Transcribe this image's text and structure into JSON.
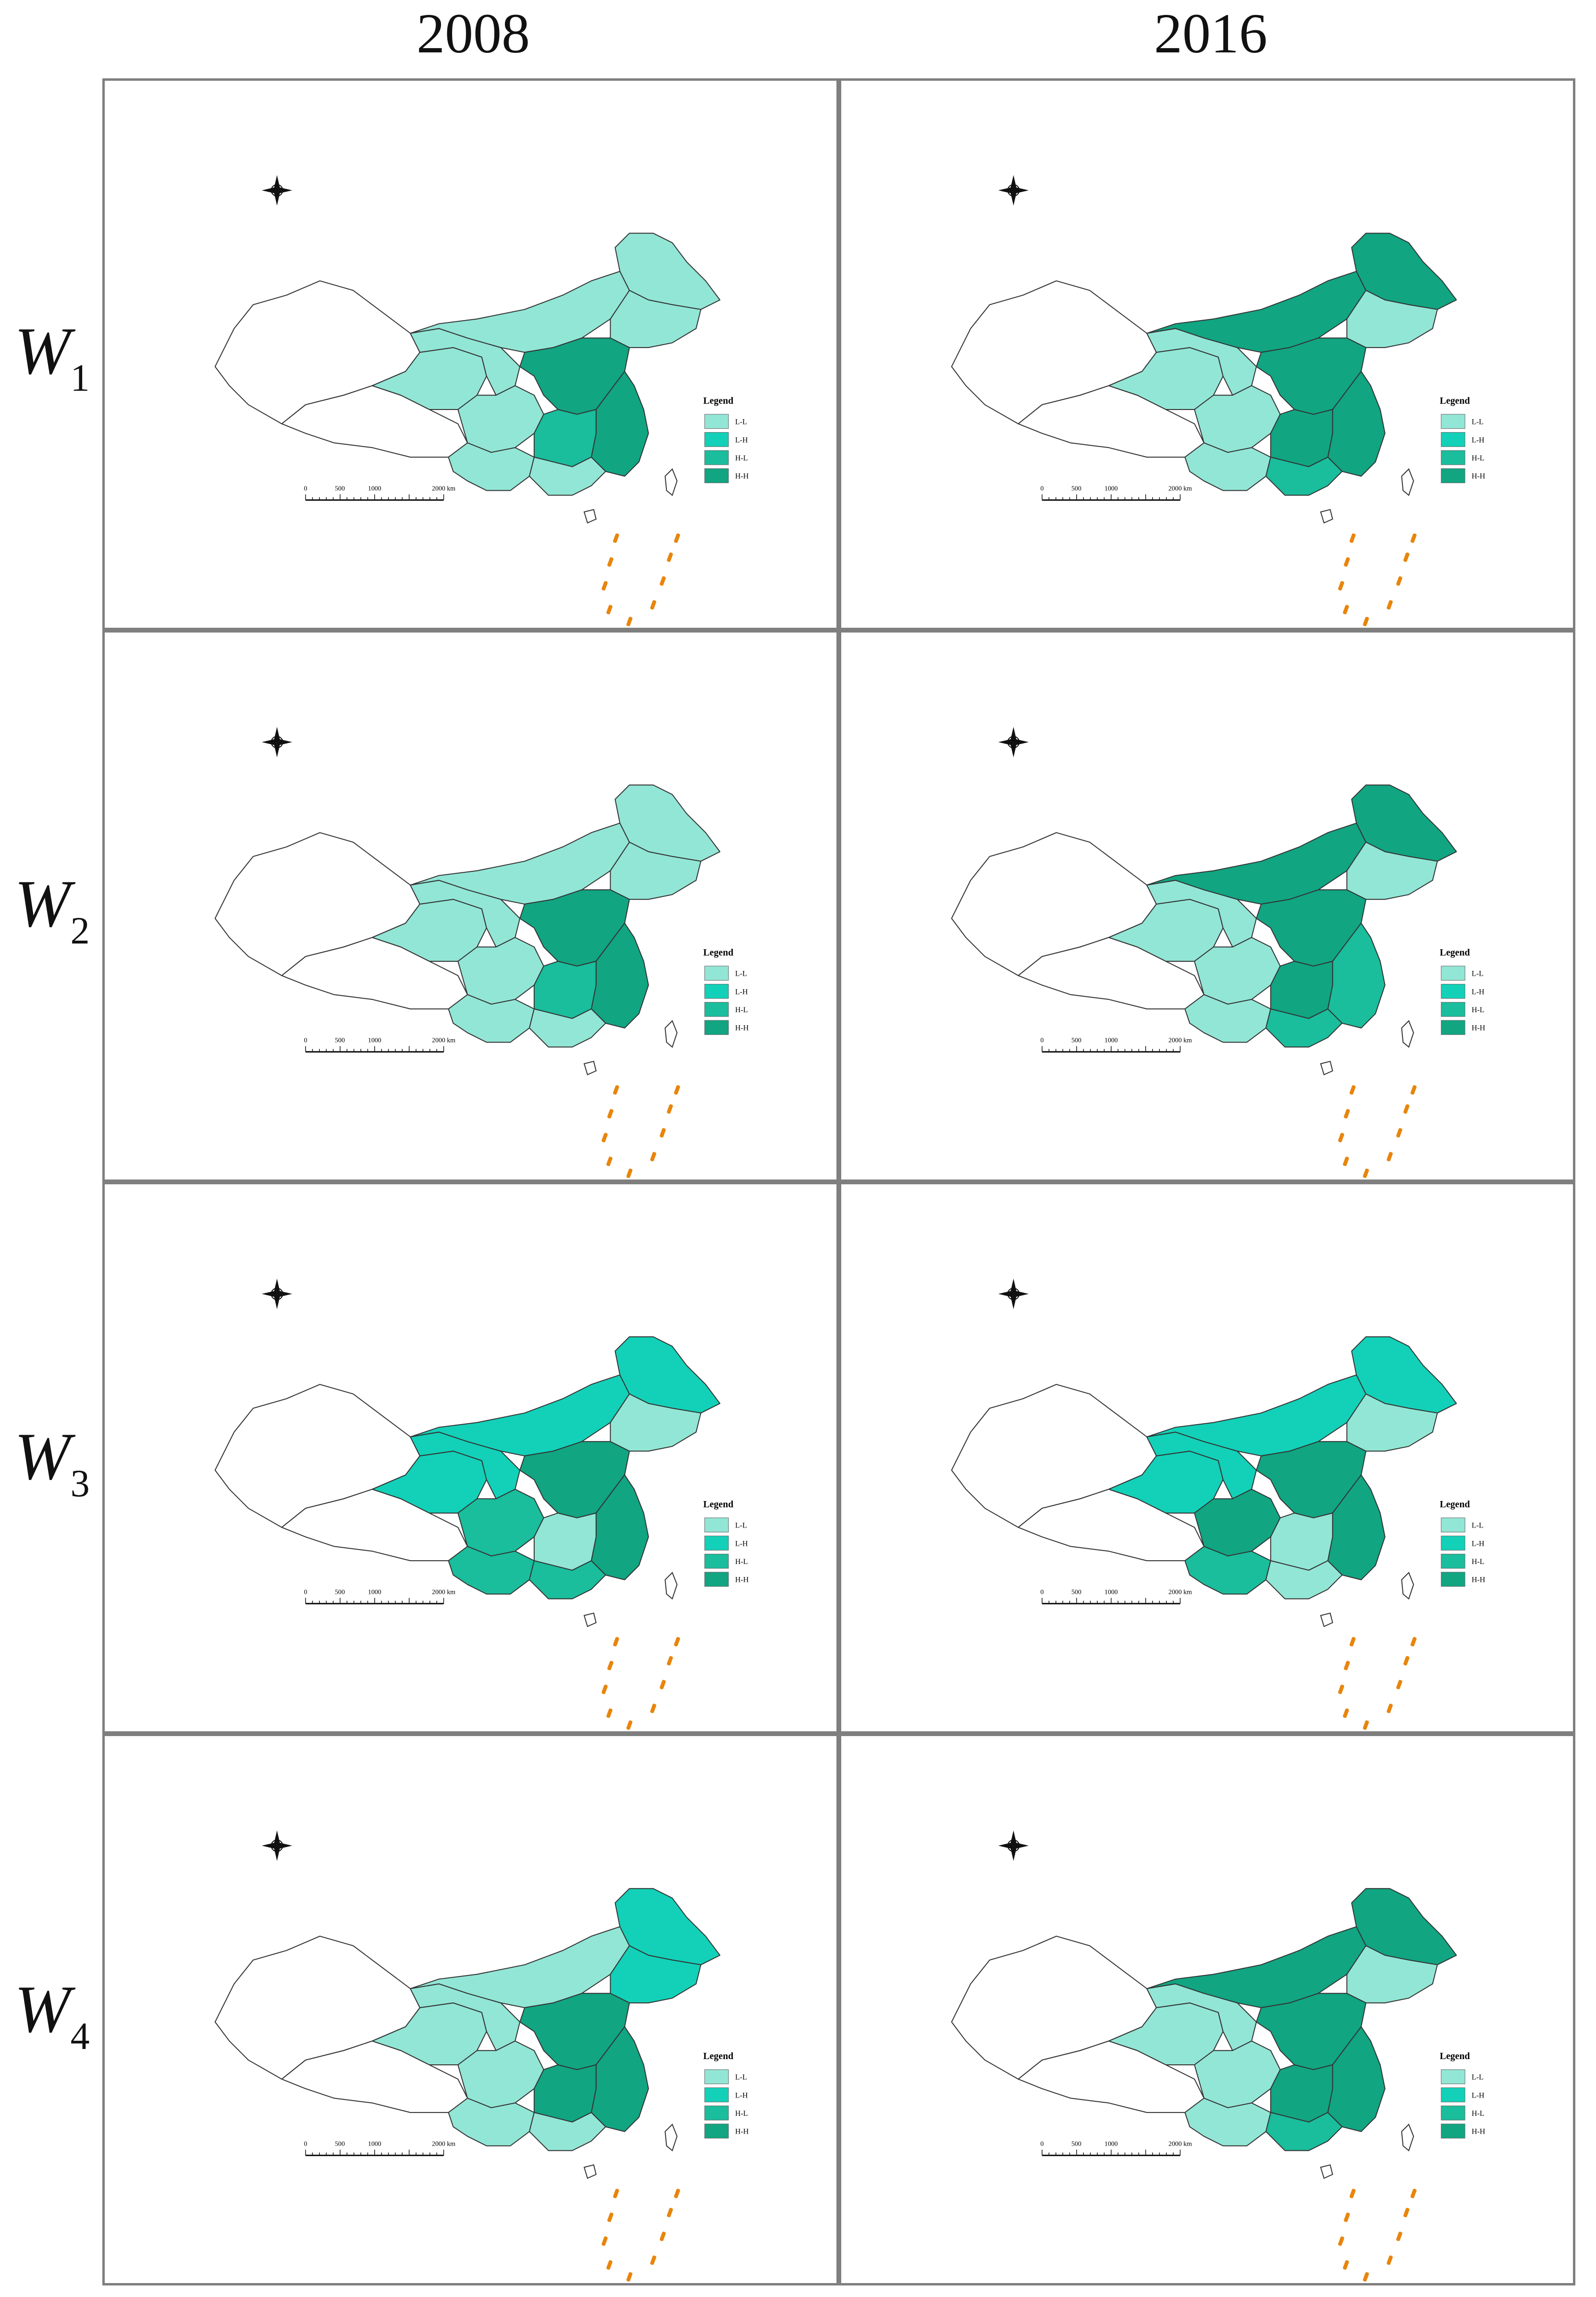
{
  "columns": [
    "2008",
    "2016"
  ],
  "rows": [
    {
      "label_main": "W",
      "label_sub": "1"
    },
    {
      "label_main": "W",
      "label_sub": "2"
    },
    {
      "label_main": "W",
      "label_sub": "3"
    },
    {
      "label_main": "W",
      "label_sub": "4"
    }
  ],
  "legend": {
    "title": "Legend",
    "items": [
      {
        "label": "L-L",
        "color": "#92e6d6"
      },
      {
        "label": "L-H",
        "color": "#12d1b8"
      },
      {
        "label": "H-L",
        "color": "#1abd9c"
      },
      {
        "label": "H-H",
        "color": "#11a582"
      }
    ]
  },
  "scale_bar": {
    "ticks": [
      "0",
      "500",
      "1000",
      "2000 km"
    ]
  },
  "colors": {
    "outline": "#333333",
    "unclassified": "#ffffff",
    "islands": "#e8850c",
    "panel_border": "#7f7f7f"
  }
}
